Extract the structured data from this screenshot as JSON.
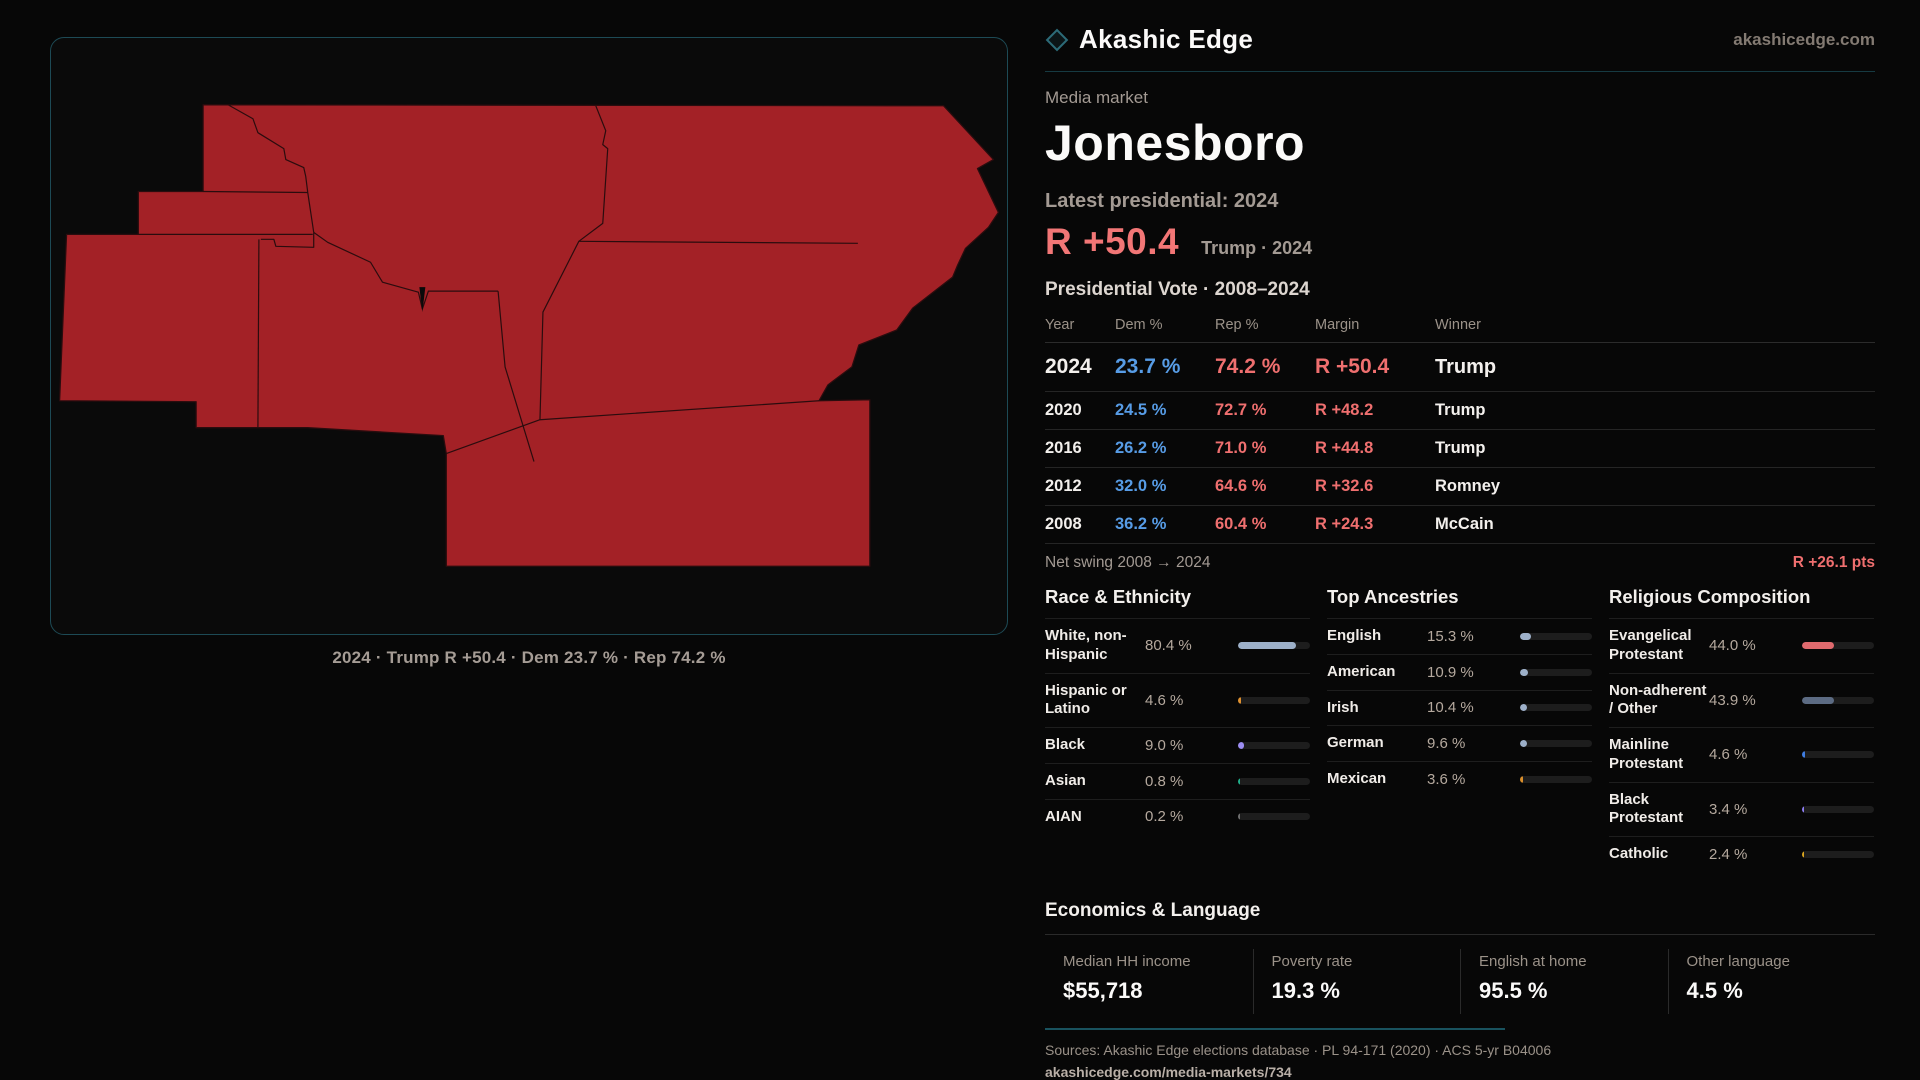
{
  "brand": {
    "name": "Akashic Edge",
    "domain": "akashicedge.com"
  },
  "map": {
    "caption": "2024 · Trump R +50.4 · Dem 23.7 % · Rep 74.2 %"
  },
  "colors": {
    "map_fill": "#a32126",
    "map_stroke": "#2a0c0e",
    "panel_border_teal": "#1d4a55",
    "accent_rep": "#ef6f6f",
    "accent_dem": "#579ce6",
    "muted_text": "#a39a93",
    "divider_teal": "#19525e"
  },
  "profile": {
    "kicker": "Media market",
    "title": "Jonesboro",
    "latest_label": "Latest presidential: 2024",
    "headline_margin": "R +50.4",
    "headline_note": "Trump · 2024",
    "table_title": "Presidential Vote · 2008–2024",
    "columns": {
      "year": "Year",
      "dem": "Dem %",
      "rep": "Rep %",
      "margin": "Margin",
      "winner": "Winner"
    },
    "rows": [
      {
        "year": "2024",
        "dem": "23.7 %",
        "rep": "74.2 %",
        "margin": "R +50.4",
        "winner": "Trump"
      },
      {
        "year": "2020",
        "dem": "24.5 %",
        "rep": "72.7 %",
        "margin": "R +48.2",
        "winner": "Trump"
      },
      {
        "year": "2016",
        "dem": "26.2 %",
        "rep": "71.0 %",
        "margin": "R +44.8",
        "winner": "Trump"
      },
      {
        "year": "2012",
        "dem": "32.0 %",
        "rep": "64.6 %",
        "margin": "R +32.6",
        "winner": "Romney"
      },
      {
        "year": "2008",
        "dem": "36.2 %",
        "rep": "60.4 %",
        "margin": "R +24.3",
        "winner": "McCain"
      }
    ],
    "net_swing_label": "Net swing 2008 → 2024",
    "net_swing_value": "R +26.1 pts"
  },
  "demographics": {
    "race": {
      "title": "Race & Ethnicity",
      "rows": [
        {
          "label": "White, non-Hispanic",
          "value": "80.4 %",
          "pct": 80.4,
          "color": "#9db0c9"
        },
        {
          "label": "Hispanic or Latino",
          "value": "4.6 %",
          "pct": 4.6,
          "color": "#e0912f"
        },
        {
          "label": "Black",
          "value": "9.0 %",
          "pct": 9.0,
          "color": "#9c8df2"
        },
        {
          "label": "Asian",
          "value": "0.8 %",
          "pct": 0.8,
          "color": "#1fae8a"
        },
        {
          "label": "AIAN",
          "value": "0.2 %",
          "pct": 0.2,
          "color": "#6f6f6f"
        }
      ]
    },
    "ancestries": {
      "title": "Top Ancestries",
      "rows": [
        {
          "label": "English",
          "value": "15.3 %",
          "pct": 15.3,
          "color": "#9db0c9"
        },
        {
          "label": "American",
          "value": "10.9 %",
          "pct": 10.9,
          "color": "#9db0c9"
        },
        {
          "label": "Irish",
          "value": "10.4 %",
          "pct": 10.4,
          "color": "#9db0c9"
        },
        {
          "label": "German",
          "value": "9.6 %",
          "pct": 9.6,
          "color": "#9db0c9"
        },
        {
          "label": "Mexican",
          "value": "3.6 %",
          "pct": 3.6,
          "color": "#d98e2b"
        }
      ]
    },
    "religion": {
      "title": "Religious Composition",
      "rows": [
        {
          "label": "Evangelical Protestant",
          "value": "44.0 %",
          "pct": 44.0,
          "color": "#e06a6e"
        },
        {
          "label": "Non-adherent / Other",
          "value": "43.9 %",
          "pct": 43.9,
          "color": "#5c6b83"
        },
        {
          "label": "Mainline Protestant",
          "value": "4.6 %",
          "pct": 4.6,
          "color": "#3f7de0"
        },
        {
          "label": "Black Protestant",
          "value": "3.4 %",
          "pct": 3.4,
          "color": "#8b7cf0"
        },
        {
          "label": "Catholic",
          "value": "2.4 %",
          "pct": 2.4,
          "color": "#d9a41f"
        }
      ]
    }
  },
  "economics": {
    "title": "Economics & Language",
    "stats": [
      {
        "label": "Median HH income",
        "value": "$55,718"
      },
      {
        "label": "Poverty rate",
        "value": "19.3 %"
      },
      {
        "label": "English at home",
        "value": "95.5 %"
      },
      {
        "label": "Other language",
        "value": "4.5 %"
      }
    ]
  },
  "footer": {
    "sources": "Sources: Akashic Edge elections database · PL 94-171 (2020) · ACS 5-yr B04006",
    "permalink": "akashicedge.com/media-markets/734"
  }
}
